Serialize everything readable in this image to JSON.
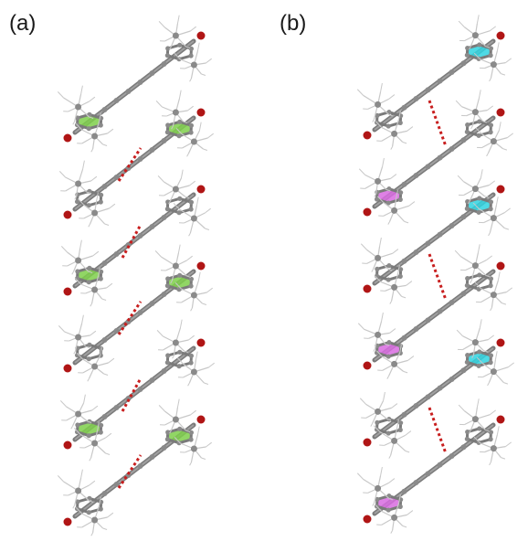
{
  "figure": {
    "panels": [
      {
        "label": "(a)",
        "stack_count": 6,
        "ring_tint": "#7ecf4a"
      },
      {
        "label": "(b)",
        "stack_count": 6,
        "ring_tint_top": "#2fd3e0",
        "ring_tint_bottom": "#d86be0"
      }
    ],
    "colors": {
      "bond": "#7a7a7a",
      "atom": "#8a8a8a",
      "oxygen": "#b01515",
      "hydrogen": "#c8c8c8",
      "contact": "#c81e1e"
    }
  }
}
